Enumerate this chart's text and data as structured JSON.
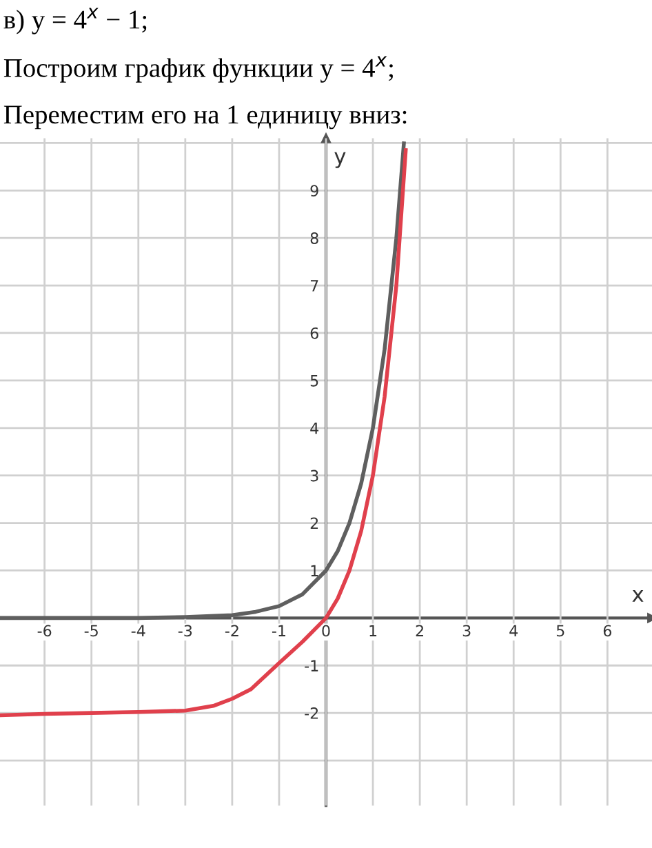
{
  "chart_data": {
    "type": "line",
    "title": "в) y = 4$^{x}$ − 1;",
    "subtitle": "Построим график функции y = 4$^{x}$;",
    "annotations": [
      "Переместим его на 1 единицу вниз:"
    ],
    "xlabel": "x",
    "ylabel": "y",
    "series": [
      {
        "color": "#5f5f5f",
        "x": [
          -6.95,
          -5,
          -4,
          -3,
          -2,
          -1.5,
          -1,
          -0.5,
          0,
          0.25,
          0.5,
          0.75,
          1,
          1.25,
          1.5,
          1.66
        ],
        "values": [
          0,
          0,
          0,
          0.02,
          0.06,
          0.13,
          0.25,
          0.5,
          1,
          1.41,
          2,
          2.83,
          4,
          5.66,
          8,
          9.99
        ]
      },
      {
        "color": "#e0404c",
        "x": [
          -6.95,
          -6,
          -5,
          -4,
          -3,
          -2.4,
          -2,
          -1.6,
          -1,
          -0.5,
          0,
          0.25,
          0.5,
          0.75,
          1,
          1.25,
          1.5,
          1.7
        ],
        "values": [
          -2.05,
          -2.02,
          -2.0,
          -1.98,
          -1.95,
          -1.85,
          -1.7,
          -1.5,
          -0.95,
          -0.5,
          0,
          0.41,
          1,
          1.83,
          3,
          4.66,
          7,
          9.85
        ]
      }
    ],
    "xlim": [
      -6.95,
      6.95
    ],
    "ylim": [
      -3.95,
      10.1
    ],
    "xticks": [
      -6,
      -5,
      -4,
      -3,
      -2,
      -1,
      0,
      1,
      2,
      3,
      4,
      5,
      6
    ],
    "yticks": [
      {
        "value": -3,
        "label": null
      },
      -2,
      -1,
      {
        "value": 0,
        "label": null
      },
      1,
      2,
      3,
      4,
      5,
      6,
      7,
      8,
      9,
      {
        "value": 10,
        "label": null
      }
    ],
    "grid": true,
    "marker": "none",
    "line_style": "solid"
  }
}
